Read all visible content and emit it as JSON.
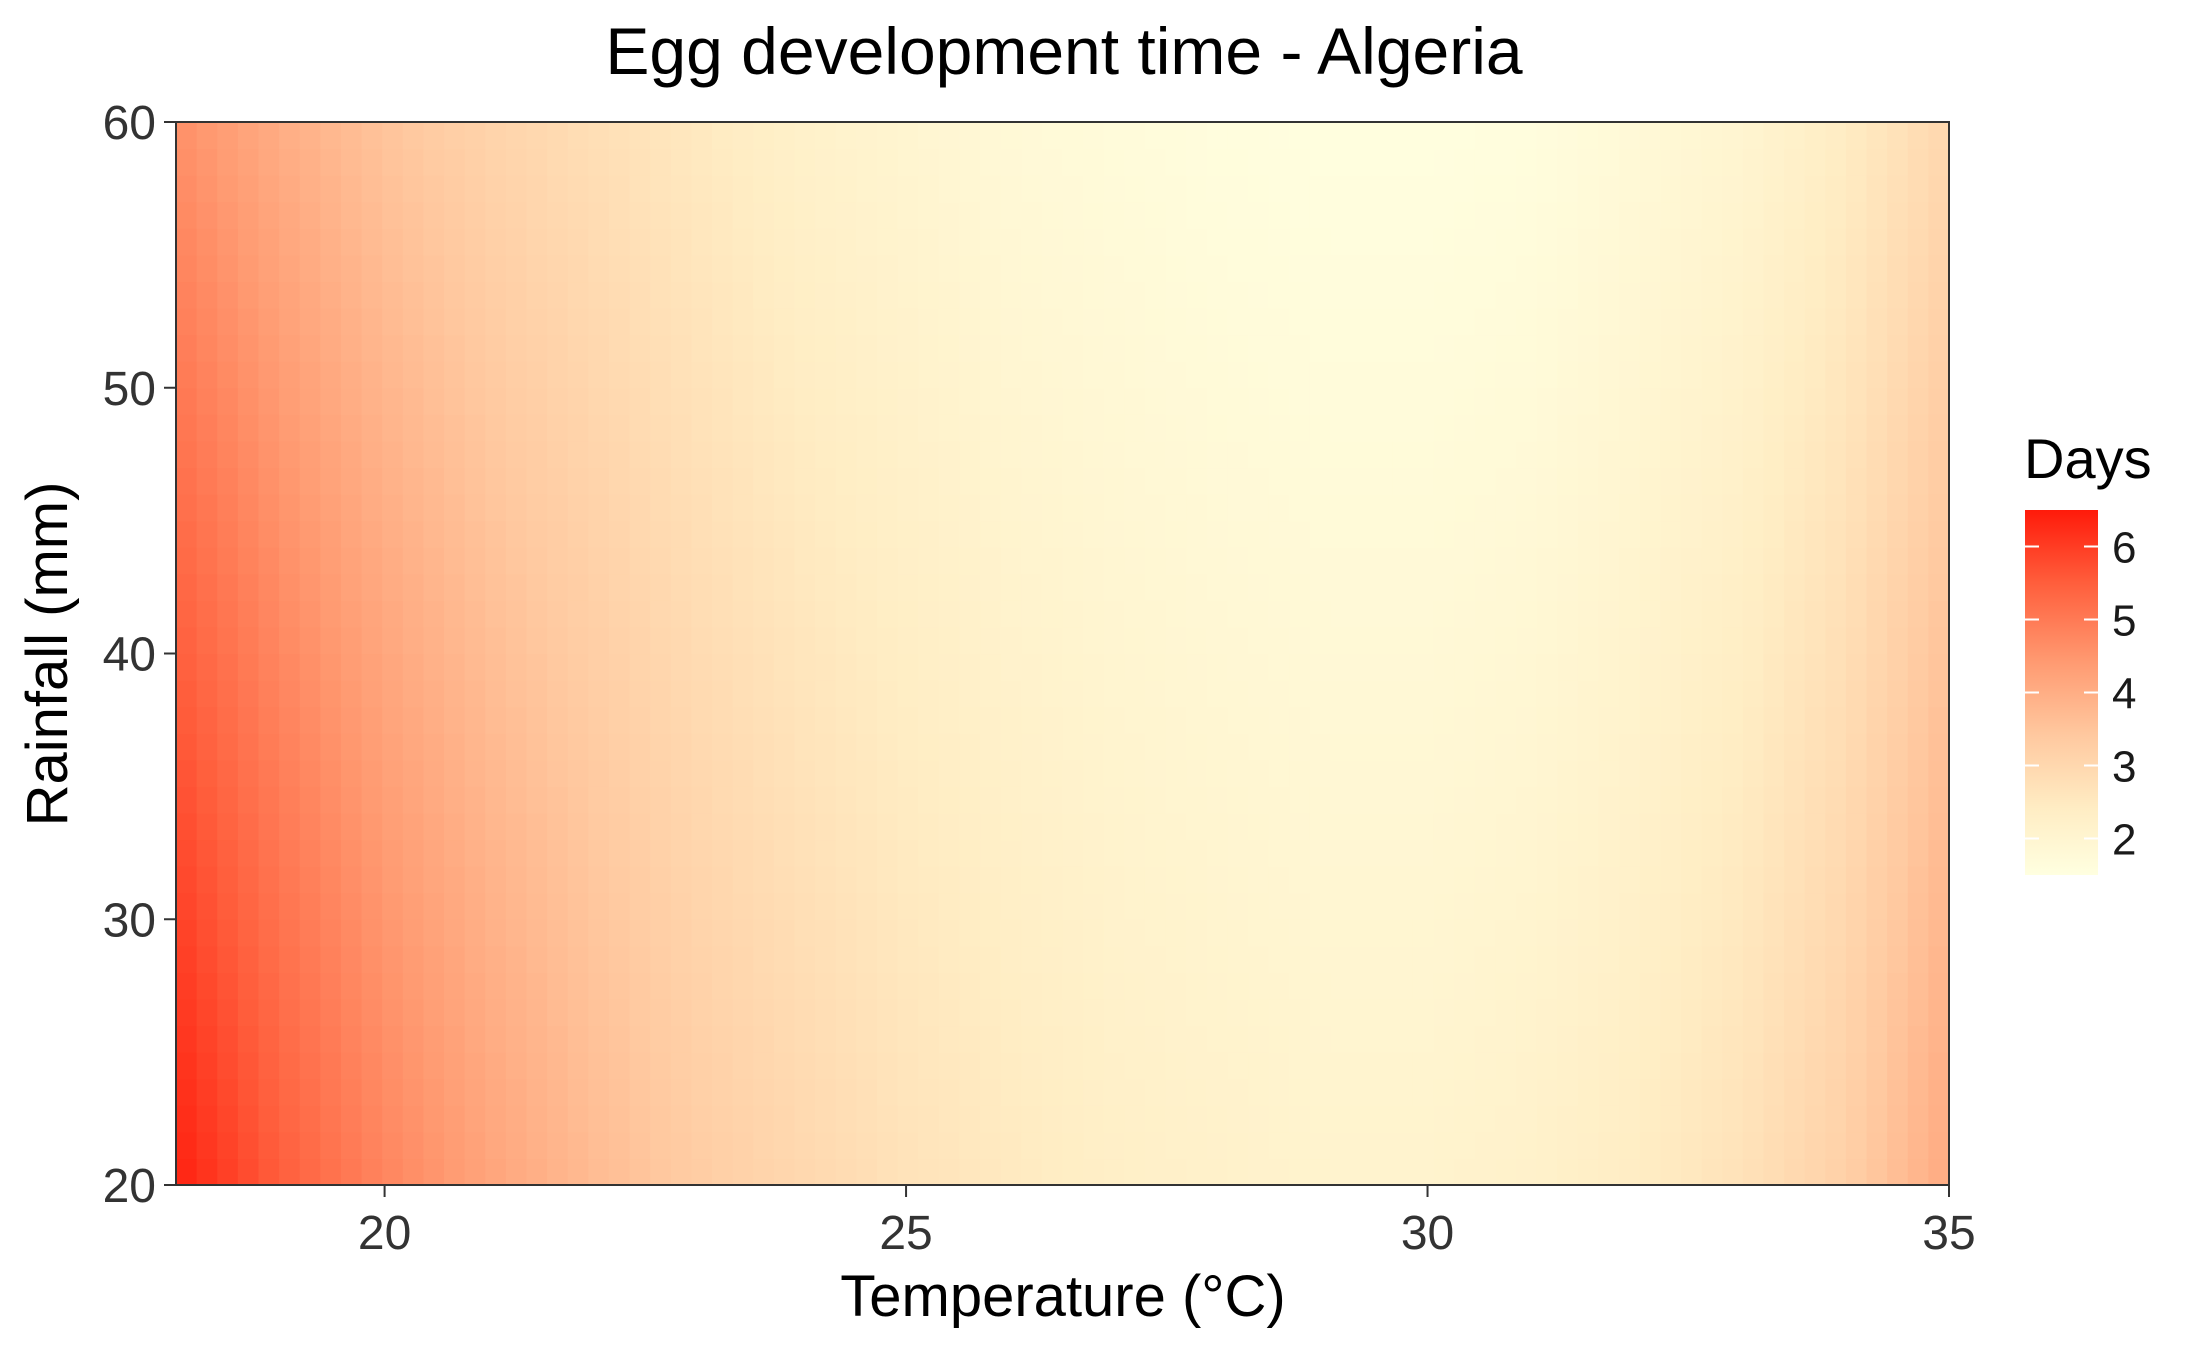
{
  "chart_data": {
    "type": "heatmap",
    "title": "Egg development time - Algeria",
    "xlabel": "Temperature (°C)",
    "ylabel": "Rainfall (mm)",
    "xlim": [
      18,
      35
    ],
    "ylim": [
      20,
      60
    ],
    "x_ticks": [
      20,
      25,
      30,
      35
    ],
    "y_ticks": [
      20,
      30,
      40,
      50,
      60
    ],
    "legend": {
      "title": "Days",
      "placement": "right",
      "range": [
        1.5,
        6.5
      ],
      "ticks": [
        2,
        3,
        4,
        5,
        6
      ],
      "low_color": "#FFFFE0",
      "high_color": "#FF1A0A"
    },
    "grid": false,
    "estimated_days_by_temperature": {
      "temperature": [
        18,
        19,
        20,
        21,
        22,
        23,
        24,
        25,
        26,
        27,
        28,
        29,
        30,
        31,
        32,
        33,
        34,
        35
      ],
      "days_at_rainfall_20": [
        6.4,
        5.5,
        4.8,
        4.2,
        3.7,
        3.3,
        3.0,
        2.7,
        2.5,
        2.3,
        2.2,
        2.1,
        2.1,
        2.2,
        2.4,
        2.7,
        3.2,
        4.1
      ],
      "days_at_rainfall_60": [
        4.6,
        4.0,
        3.5,
        3.1,
        2.8,
        2.5,
        2.2,
        2.0,
        1.8,
        1.7,
        1.6,
        1.55,
        1.55,
        1.6,
        1.8,
        2.0,
        2.4,
        3.0
      ]
    }
  }
}
